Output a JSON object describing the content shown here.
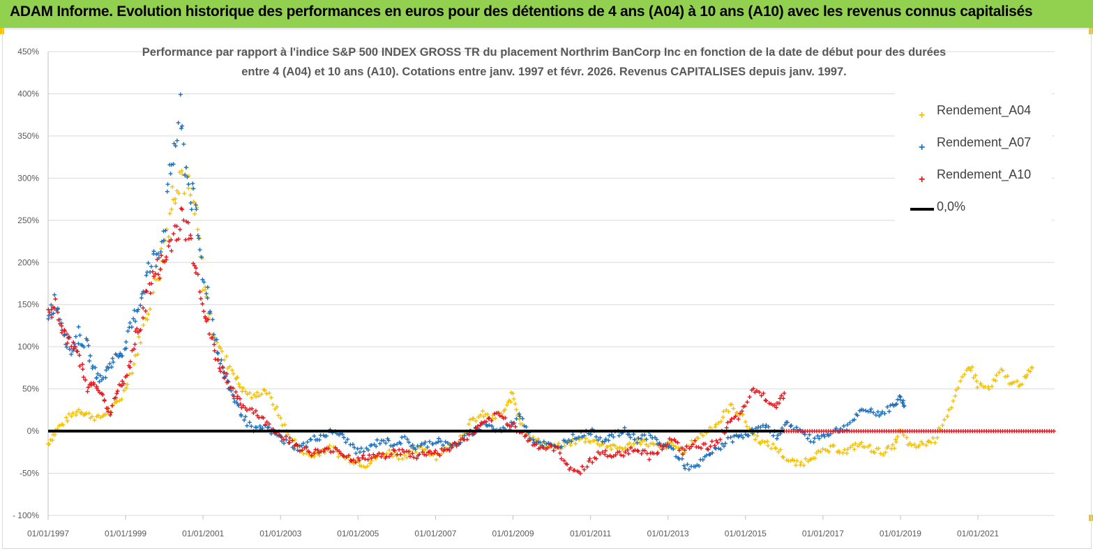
{
  "header": {
    "title": "ADAM Informe. Evolution historique des performances en euros pour des détentions de 4 ans (A04) à 10 ans (A10) avec les revenus connus capitalisés"
  },
  "colors": {
    "header_bg": "#92d050",
    "a04": "#f5c000",
    "a07": "#1a6fbd",
    "a10": "#e8121a",
    "zero": "#000000",
    "grid": "#d9d9d9"
  },
  "chart_data": {
    "type": "scatter",
    "title_line1": "Performance par rapport à l'indice S&P 500 INDEX GROSS TR  du placement Northrim BanCorp Inc en fonction de la date de début pour des durées",
    "title_line2": "entre 4 (A04) et 10 ans (A10). Cotations entre janv. 1997 et févr. 2026. Revenus CAPITALISES depuis janv. 1997.",
    "ylim": [
      -100,
      450
    ],
    "yticks": [
      -100,
      -50,
      0,
      50,
      100,
      150,
      200,
      250,
      300,
      350,
      400,
      450
    ],
    "ytick_labels": [
      "- 100%",
      "-50%",
      "0%",
      "50%",
      "100%",
      "150%",
      "200%",
      "250%",
      "300%",
      "350%",
      "400%",
      "450%"
    ],
    "xlim": [
      1997.0,
      2022.98
    ],
    "xticks": [
      1997,
      1999,
      2001,
      2003,
      2005,
      2007,
      2009,
      2011,
      2013,
      2015,
      2017,
      2019,
      2021
    ],
    "xtick_labels": [
      "01/01/1997",
      "01/01/1999",
      "01/01/2001",
      "01/01/2003",
      "01/01/2005",
      "01/01/2007",
      "01/01/2009",
      "01/01/2011",
      "01/01/2013",
      "01/01/2015",
      "01/01/2017",
      "01/01/2019",
      "01/01/2021"
    ],
    "legend_position": "top-right",
    "series": [
      {
        "name": "Rendement_A04",
        "marker": "plus",
        "color": "#f5c000",
        "x": [
          1997.0,
          1997.2,
          1997.5,
          1997.8,
          1998.0,
          1998.3,
          1998.6,
          1998.9,
          1999.2,
          1999.5,
          1999.8,
          2000.0,
          2000.2,
          2000.4,
          2000.6,
          2000.8,
          2001.0,
          2001.2,
          2001.5,
          2001.8,
          2002.0,
          2002.3,
          2002.6,
          2002.9,
          2003.2,
          2003.5,
          2003.8,
          2004.0,
          2004.3,
          2004.6,
          2004.9,
          2005.2,
          2005.5,
          2005.8,
          2006.1,
          2006.4,
          2006.7,
          2007.0,
          2007.3,
          2007.6,
          2007.9,
          2008.2,
          2008.5,
          2008.8,
          2009.0,
          2009.2,
          2009.5,
          2009.8,
          2010.1,
          2010.4,
          2010.7,
          2011.0,
          2011.3,
          2011.6,
          2011.9,
          2012.2,
          2012.5,
          2012.8,
          2013.1,
          2013.4,
          2013.7,
          2014.0,
          2014.3,
          2014.6,
          2014.9,
          2015.2,
          2015.5,
          2015.8,
          2016.1,
          2016.4,
          2016.7,
          2017.0,
          2017.3,
          2017.6,
          2017.9,
          2018.2,
          2018.5,
          2018.8,
          2019.0,
          2019.3,
          2019.6,
          2019.9,
          2020.2,
          2020.5,
          2020.8,
          2021.0,
          2021.3,
          2021.6,
          2021.9,
          2022.2,
          2022.4
        ],
        "y": [
          -15,
          0,
          15,
          25,
          20,
          15,
          25,
          40,
          80,
          130,
          180,
          220,
          280,
          310,
          290,
          260,
          180,
          130,
          90,
          70,
          50,
          40,
          50,
          25,
          -5,
          -20,
          -30,
          -25,
          -20,
          -30,
          -35,
          -40,
          -30,
          -25,
          -30,
          -25,
          -20,
          -30,
          -20,
          -10,
          10,
          20,
          15,
          25,
          45,
          10,
          -10,
          -15,
          -20,
          -15,
          -10,
          -10,
          -15,
          -20,
          -20,
          -10,
          -15,
          -20,
          -15,
          -25,
          -10,
          0,
          10,
          30,
          20,
          -5,
          -15,
          -20,
          -35,
          -40,
          -30,
          -25,
          -20,
          -25,
          -15,
          -20,
          -25,
          -20,
          0,
          -20,
          -15,
          -10,
          20,
          50,
          80,
          55,
          50,
          70,
          55,
          60,
          75
        ]
      },
      {
        "name": "Rendement_A07",
        "marker": "plus",
        "color": "#1a6fbd",
        "x": [
          1997.0,
          1997.2,
          1997.4,
          1997.6,
          1997.8,
          1998.0,
          1998.2,
          1998.4,
          1998.6,
          1998.8,
          1999.0,
          1999.2,
          1999.4,
          1999.6,
          1999.8,
          2000.0,
          2000.2,
          2000.4,
          2000.6,
          2000.8,
          2001.0,
          2001.2,
          2001.4,
          2001.6,
          2001.8,
          2002.0,
          2002.3,
          2002.6,
          2002.9,
          2003.2,
          2003.5,
          2003.8,
          2004.1,
          2004.4,
          2004.7,
          2005.0,
          2005.3,
          2005.6,
          2005.9,
          2006.2,
          2006.5,
          2006.8,
          2007.1,
          2007.4,
          2007.7,
          2008.0,
          2008.3,
          2008.6,
          2008.9,
          2009.2,
          2009.5,
          2009.8,
          2010.1,
          2010.4,
          2010.7,
          2011.0,
          2011.3,
          2011.6,
          2011.9,
          2012.2,
          2012.5,
          2012.8,
          2013.1,
          2013.4,
          2013.7,
          2014.0,
          2014.3,
          2014.6,
          2014.9,
          2015.2,
          2015.5,
          2015.8,
          2016.1,
          2016.4,
          2016.7,
          2017.0,
          2017.3,
          2017.6,
          2017.9,
          2018.2,
          2018.5,
          2018.8,
          2019.0,
          2019.1
        ],
        "y": [
          140,
          155,
          120,
          95,
          115,
          100,
          70,
          60,
          80,
          90,
          100,
          130,
          160,
          190,
          210,
          240,
          320,
          370,
          300,
          260,
          190,
          140,
          90,
          60,
          40,
          20,
          0,
          5,
          -5,
          -15,
          -20,
          -10,
          -5,
          0,
          -10,
          -25,
          -20,
          -10,
          -15,
          -10,
          -20,
          -15,
          -10,
          -20,
          -10,
          0,
          10,
          0,
          5,
          20,
          -10,
          -15,
          -20,
          -10,
          -5,
          0,
          -10,
          -5,
          0,
          -10,
          -5,
          -15,
          -20,
          -40,
          -45,
          -30,
          -20,
          -10,
          -5,
          0,
          5,
          -5,
          10,
          0,
          -10,
          -5,
          0,
          5,
          20,
          25,
          20,
          30,
          40,
          30
        ]
      },
      {
        "name": "Rendement_A10",
        "marker": "plus",
        "color": "#e8121a",
        "x": [
          1997.0,
          1997.2,
          1997.4,
          1997.6,
          1997.8,
          1998.0,
          1998.2,
          1998.4,
          1998.6,
          1998.8,
          1999.0,
          1999.2,
          1999.4,
          1999.6,
          1999.8,
          2000.0,
          2000.2,
          2000.4,
          2000.6,
          2000.8,
          2001.0,
          2001.2,
          2001.4,
          2001.6,
          2001.8,
          2002.0,
          2002.3,
          2002.6,
          2002.9,
          2003.2,
          2003.5,
          2003.8,
          2004.1,
          2004.4,
          2004.7,
          2005.0,
          2005.3,
          2005.6,
          2005.9,
          2006.2,
          2006.5,
          2006.8,
          2007.1,
          2007.4,
          2007.7,
          2008.0,
          2008.3,
          2008.6,
          2008.9,
          2009.2,
          2009.5,
          2009.8,
          2010.1,
          2010.4,
          2010.7,
          2011.0,
          2011.3,
          2011.6,
          2011.9,
          2012.2,
          2012.5,
          2012.8,
          2013.1,
          2013.4,
          2013.7,
          2014.0,
          2014.3,
          2014.6,
          2014.9,
          2015.2,
          2015.5,
          2015.8,
          2016.0
        ],
        "y": [
          140,
          150,
          120,
          100,
          90,
          50,
          60,
          40,
          20,
          50,
          60,
          100,
          130,
          170,
          190,
          200,
          230,
          250,
          240,
          200,
          150,
          110,
          80,
          65,
          45,
          30,
          25,
          10,
          0,
          -10,
          -20,
          -25,
          -25,
          -20,
          -30,
          -35,
          -30,
          -30,
          -25,
          -25,
          -30,
          -25,
          -25,
          -20,
          -10,
          0,
          10,
          20,
          10,
          0,
          -15,
          -20,
          -20,
          -40,
          -50,
          -35,
          -25,
          -30,
          -25,
          -20,
          -30,
          -20,
          -10,
          -25,
          -15,
          -20,
          -10,
          10,
          20,
          50,
          40,
          30,
          45
        ]
      }
    ],
    "zero_line": {
      "name": "0,0%",
      "y": 0,
      "color": "#000000"
    }
  }
}
